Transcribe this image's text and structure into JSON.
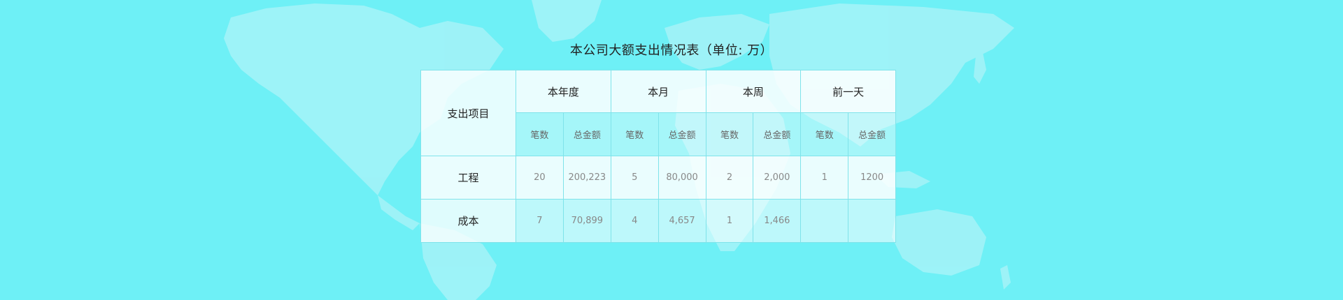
{
  "title": "本公司大额支出情况表（单位: 万）",
  "table": {
    "item_header": "支出项目",
    "periods": [
      "本年度",
      "本月",
      "本周",
      "前一天"
    ],
    "sub_headers": [
      "笔数",
      "总金额"
    ],
    "rows": [
      {
        "item": "工程",
        "values": [
          "20",
          "200,223",
          "5",
          "80,000",
          "2",
          "2,000",
          "1",
          "1200"
        ]
      },
      {
        "item": "成本",
        "values": [
          "7",
          "70,899",
          "4",
          "4,657",
          "1",
          "1,466",
          "",
          ""
        ]
      }
    ]
  },
  "colors": {
    "background": "#6ef0f6",
    "map_land": "#a8f4f8",
    "border": "#7fe3ea"
  }
}
